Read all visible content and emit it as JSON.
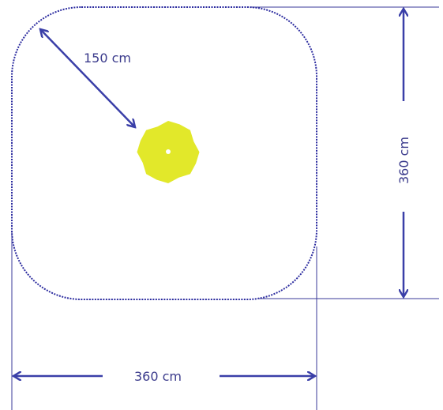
{
  "diagram": {
    "labels": {
      "radius": "150 cm",
      "height": "360 cm",
      "width": "360 cm"
    },
    "colors": {
      "line": "#3a3a9a",
      "boundary": "#2e2ea0",
      "arrow": "#3a3fa8",
      "label": "#3b3b8c",
      "shape_fill": "#e2e82a",
      "shape_center": "#ffffff"
    },
    "shape": {
      "name": "yellow-umbrella",
      "points": 8
    }
  }
}
